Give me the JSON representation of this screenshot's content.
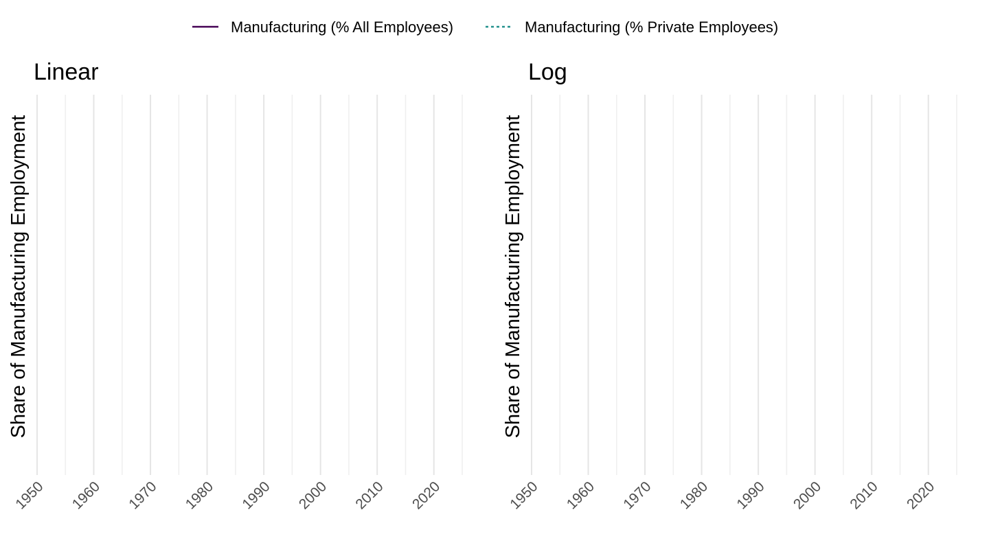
{
  "chart_data": {
    "type": "line",
    "legend": {
      "position": "top",
      "entries": [
        {
          "name": "Manufacturing (% All Employees)",
          "color": "#440154",
          "linetype": "solid"
        },
        {
          "name": "Manufacturing (% Private Employees)",
          "color": "#21908C",
          "linetype": "dashed"
        }
      ]
    },
    "panels": [
      {
        "title": "Linear",
        "scale": "linear",
        "ylabel": "Share of Manufacturing Employment",
        "xlim": [
          1950,
          2025
        ],
        "x_ticks": [
          1950,
          1960,
          1970,
          1980,
          1990,
          2000,
          2010,
          2020
        ],
        "x_tick_labels": [
          "1950",
          "1960",
          "1970",
          "1980",
          "1990",
          "2000",
          "2010",
          "2020"
        ],
        "minor_x": [
          1955,
          1965,
          1975,
          1985,
          1995,
          2005,
          2015,
          2025
        ],
        "grid": "vertical only",
        "series": []
      },
      {
        "title": "Log",
        "scale": "log",
        "ylabel": "Share of Manufacturing Employment",
        "xlim": [
          1950,
          2025
        ],
        "x_ticks": [
          1950,
          1960,
          1970,
          1980,
          1990,
          2000,
          2010,
          2020
        ],
        "x_tick_labels": [
          "1950",
          "1960",
          "1970",
          "1980",
          "1990",
          "2000",
          "2010",
          "2020"
        ],
        "minor_x": [
          1955,
          1965,
          1975,
          1985,
          1995,
          2005,
          2015,
          2025
        ],
        "grid": "vertical only",
        "series": []
      }
    ]
  }
}
